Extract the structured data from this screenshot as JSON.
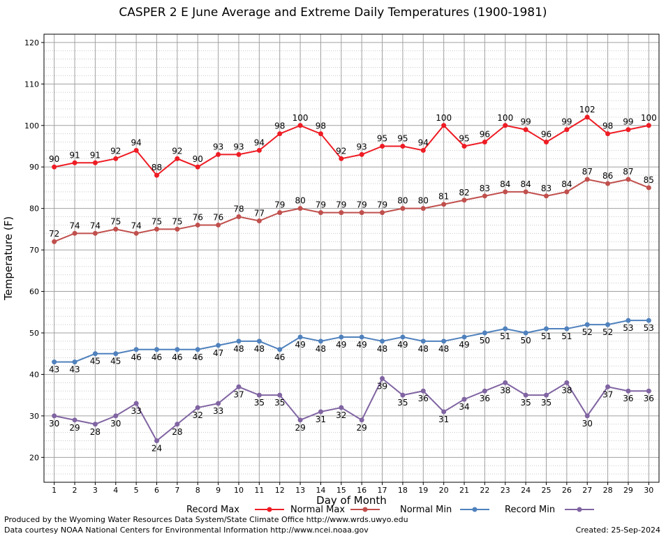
{
  "chart_data": {
    "type": "line",
    "title": "CASPER 2 E June Average and Extreme Daily Temperatures (1900-1981)",
    "xlabel": "Day of Month",
    "ylabel": "Temperature (F)",
    "x": [
      1,
      2,
      3,
      4,
      5,
      6,
      7,
      8,
      9,
      10,
      11,
      12,
      13,
      14,
      15,
      16,
      17,
      18,
      19,
      20,
      21,
      22,
      23,
      24,
      25,
      26,
      27,
      28,
      29,
      30
    ],
    "xlim": [
      0.5,
      30.5
    ],
    "ylim": [
      14,
      122
    ],
    "yticks": [
      20,
      30,
      40,
      50,
      60,
      70,
      80,
      90,
      100,
      110,
      120
    ],
    "grid": true,
    "legend_position": "bottom",
    "series": [
      {
        "name": "Record Max",
        "color": "#ee1c24",
        "label_pos": "above",
        "values": [
          90,
          91,
          91,
          92,
          94,
          88,
          92,
          90,
          93,
          93,
          94,
          98,
          100,
          98,
          92,
          93,
          95,
          95,
          94,
          100,
          95,
          96,
          100,
          99,
          96,
          99,
          102,
          98,
          99,
          100
        ]
      },
      {
        "name": "Normal Max",
        "color": "#c0504d",
        "label_pos": "above",
        "values": [
          72,
          74,
          74,
          75,
          74,
          75,
          75,
          76,
          76,
          78,
          77,
          79,
          80,
          79,
          79,
          79,
          79,
          80,
          80,
          81,
          82,
          83,
          84,
          84,
          83,
          84,
          87,
          86,
          87,
          85
        ]
      },
      {
        "name": "Normal Min",
        "color": "#4f81bd",
        "label_pos": "below",
        "values": [
          43,
          43,
          45,
          45,
          46,
          46,
          46,
          46,
          47,
          48,
          48,
          46,
          49,
          48,
          49,
          49,
          48,
          49,
          48,
          48,
          49,
          50,
          51,
          50,
          51,
          51,
          52,
          52,
          53,
          53
        ]
      },
      {
        "name": "Record Min",
        "color": "#8064a2",
        "label_pos": "below",
        "values": [
          30,
          29,
          28,
          30,
          33,
          24,
          28,
          32,
          33,
          37,
          35,
          35,
          29,
          31,
          32,
          29,
          39,
          35,
          36,
          31,
          34,
          36,
          38,
          35,
          35,
          38,
          30,
          37,
          36,
          36
        ]
      }
    ]
  },
  "footer": {
    "produced_by": "Produced by the Wyoming Water Resources Data System/State Climate Office http://www.wrds.uwyo.edu",
    "courtesy": "Data courtesy NOAA National Centers for Environmental Information http://www.ncei.noaa.gov",
    "created": "Created:  25-Sep-2024"
  }
}
